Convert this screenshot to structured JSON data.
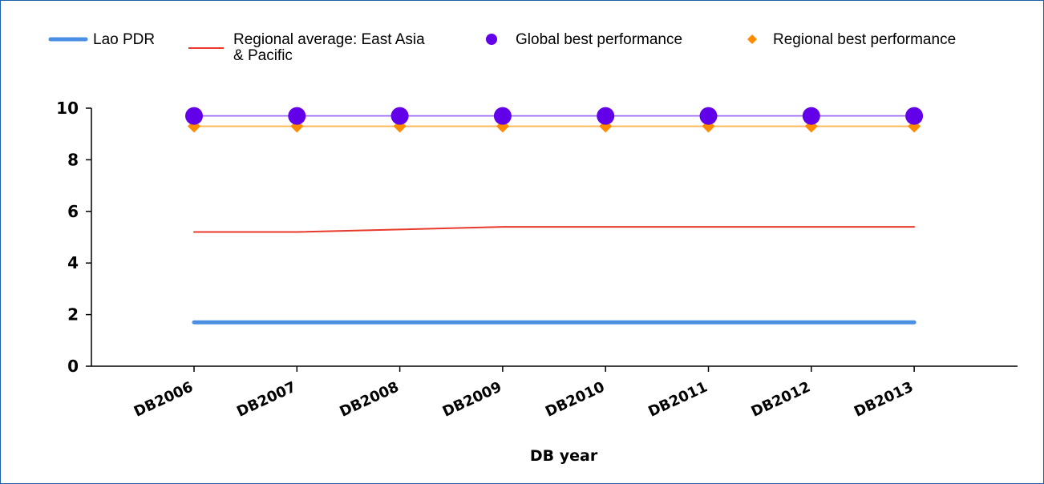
{
  "chart_data": {
    "type": "line",
    "title": "",
    "xlabel": "DB year",
    "ylabel": "",
    "ylim": [
      0,
      10
    ],
    "yticks": [
      0,
      2,
      4,
      6,
      8,
      10
    ],
    "categories": [
      "DB2006",
      "DB2007",
      "DB2008",
      "DB2009",
      "DB2010",
      "DB2011",
      "DB2012",
      "DB2013"
    ],
    "legend_position": "top",
    "grid": false,
    "series": [
      {
        "name": "Lao PDR",
        "color": "#4a90e2",
        "marker": "none",
        "values": [
          1.7,
          1.7,
          1.7,
          1.7,
          1.7,
          1.7,
          1.7,
          1.7
        ]
      },
      {
        "name": "Regional average: East Asia & Pacific",
        "legend_lines": [
          "Regional average: East Asia",
          "& Pacific"
        ],
        "color": "#e8392b",
        "marker": "none",
        "values": [
          5.2,
          5.2,
          5.3,
          5.4,
          5.4,
          5.4,
          5.4,
          5.4
        ]
      },
      {
        "name": "Global best performance",
        "color": "#6200ea",
        "line_color": "#9b6cf3",
        "marker": "circle",
        "values": [
          9.7,
          9.7,
          9.7,
          9.7,
          9.7,
          9.7,
          9.7,
          9.7
        ]
      },
      {
        "name": "Regional best performance",
        "color": "#ff8c00",
        "line_color": "#ffb54d",
        "marker": "diamond",
        "values": [
          9.3,
          9.3,
          9.3,
          9.3,
          9.3,
          9.3,
          9.3,
          9.3
        ]
      }
    ]
  }
}
